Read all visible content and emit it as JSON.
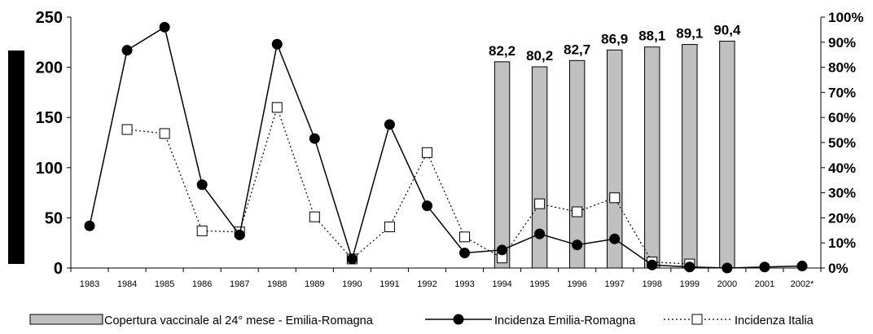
{
  "chart_data": {
    "type": "bar+line",
    "title": "",
    "xlabel": "",
    "ylabel": "",
    "categories": [
      "1983",
      "1984",
      "1985",
      "1986",
      "1987",
      "1988",
      "1989",
      "1990",
      "1991",
      "1992",
      "1993",
      "1994",
      "1995",
      "1996",
      "1997",
      "1998",
      "1999",
      "2000",
      "2001",
      "2002*"
    ],
    "y_left": {
      "min": 0,
      "max": 250,
      "ticks": [
        "0",
        "50",
        "100",
        "150",
        "200",
        "250"
      ]
    },
    "y_right": {
      "min": 0,
      "max": 100,
      "ticks": [
        "0%",
        "10%",
        "20%",
        "30%",
        "40%",
        "50%",
        "60%",
        "70%",
        "80%",
        "90%",
        "100%"
      ]
    },
    "series": [
      {
        "name": "Copertura vaccinale al 24° mese - Emilia-Romagna",
        "type": "bar",
        "axis": "right",
        "color": "#c0c0c0",
        "values": [
          null,
          null,
          null,
          null,
          null,
          null,
          null,
          null,
          null,
          null,
          null,
          82.2,
          80.2,
          82.7,
          86.9,
          88.1,
          89.1,
          90.4,
          null,
          null
        ],
        "labels": [
          null,
          null,
          null,
          null,
          null,
          null,
          null,
          null,
          null,
          null,
          null,
          "82,2",
          "80,2",
          "82,7",
          "86,9",
          "88,1",
          "89,1",
          "90,4",
          null,
          null
        ]
      },
      {
        "name": "Incidenza Emilia-Romagna",
        "type": "line",
        "axis": "left",
        "color": "#000000",
        "values": [
          42,
          217,
          240,
          83,
          33,
          223,
          129,
          9,
          143,
          62,
          15,
          18,
          34,
          23,
          29,
          3,
          1,
          0,
          1,
          2
        ]
      },
      {
        "name": "Incidenza Italia",
        "type": "line",
        "axis": "left",
        "style": "dotted",
        "values": [
          null,
          138,
          134,
          37,
          36,
          160,
          51,
          9,
          41,
          115,
          31,
          10,
          64,
          56,
          70,
          6,
          4,
          null,
          null,
          null
        ]
      }
    ],
    "legend": "bottom",
    "grid": false
  }
}
